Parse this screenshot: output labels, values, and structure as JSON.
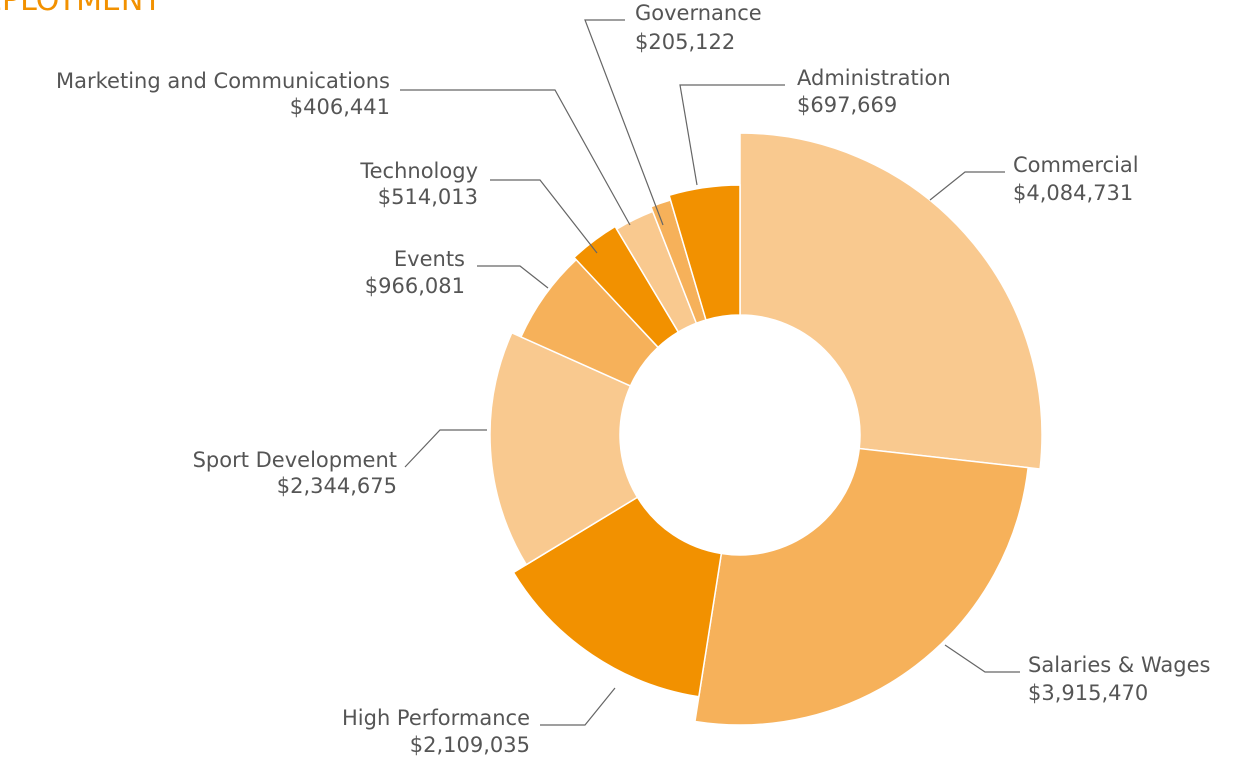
{
  "chart_data": {
    "type": "donut",
    "title": "DEPLOYMENT",
    "categories": [
      "Commercial",
      "Salaries & Wages",
      "High Performance",
      "Sport Development",
      "Events",
      "Technology",
      "Marketing and Communications",
      "Governance",
      "Administration"
    ],
    "values": [
      4084731,
      3915470,
      2109035,
      2344675,
      966081,
      514013,
      406441,
      205122,
      697669
    ],
    "value_labels": [
      "$4,084,731",
      "$3,915,470",
      "$2,109,035",
      "$2,344,675",
      "$966,081",
      "$514,013",
      "$406,441",
      "$205,122",
      "$697,669"
    ],
    "colors": [
      "#f9c98f",
      "#f6b15a",
      "#f29100",
      "#f9c98f",
      "#f6b15a",
      "#f29100",
      "#f9c98f",
      "#f6b15a",
      "#f29100"
    ]
  }
}
